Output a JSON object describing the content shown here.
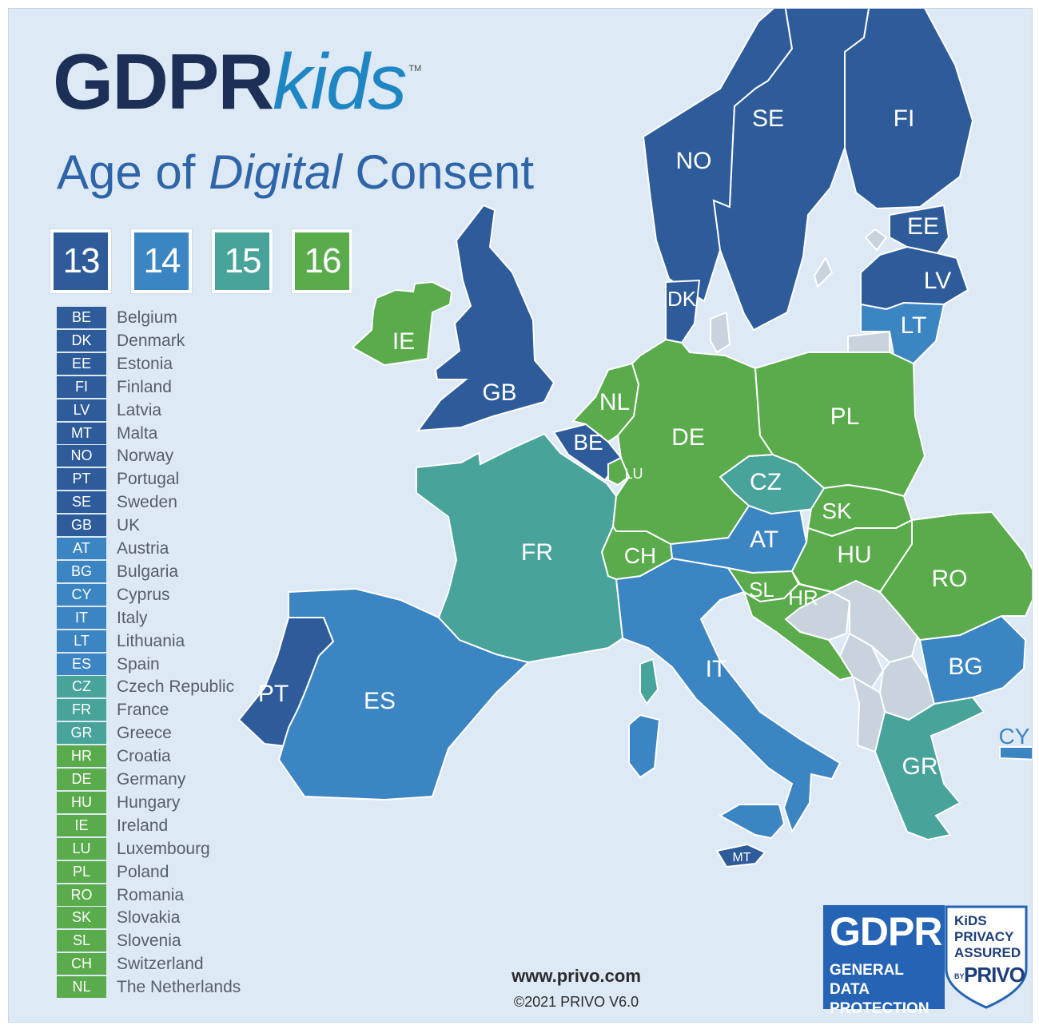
{
  "logo": {
    "gdpr": "GDPR",
    "kids": "kids",
    "tm": "TM"
  },
  "subtitle": {
    "before": "Age of ",
    "emphasis": "Digital",
    "after": " Consent"
  },
  "ages": [
    {
      "label": "13",
      "color": "#2e5c9b"
    },
    {
      "label": "14",
      "color": "#3b85c3"
    },
    {
      "label": "15",
      "color": "#48a39a"
    },
    {
      "label": "16",
      "color": "#5aab4b"
    }
  ],
  "legend": [
    {
      "code": "BE",
      "name": "Belgium",
      "age": 13
    },
    {
      "code": "DK",
      "name": "Denmark",
      "age": 13
    },
    {
      "code": "EE",
      "name": "Estonia",
      "age": 13
    },
    {
      "code": "FI",
      "name": "Finland",
      "age": 13
    },
    {
      "code": "LV",
      "name": "Latvia",
      "age": 13
    },
    {
      "code": "MT",
      "name": "Malta",
      "age": 13
    },
    {
      "code": "NO",
      "name": "Norway",
      "age": 13
    },
    {
      "code": "PT",
      "name": "Portugal",
      "age": 13
    },
    {
      "code": "SE",
      "name": "Sweden",
      "age": 13
    },
    {
      "code": "GB",
      "name": "UK",
      "age": 13
    },
    {
      "code": "AT",
      "name": "Austria",
      "age": 14
    },
    {
      "code": "BG",
      "name": "Bulgaria",
      "age": 14
    },
    {
      "code": "CY",
      "name": "Cyprus",
      "age": 14
    },
    {
      "code": "IT",
      "name": "Italy",
      "age": 14
    },
    {
      "code": "LT",
      "name": "Lithuania",
      "age": 14
    },
    {
      "code": "ES",
      "name": "Spain",
      "age": 14
    },
    {
      "code": "CZ",
      "name": "Czech Republic",
      "age": 15
    },
    {
      "code": "FR",
      "name": "France",
      "age": 15
    },
    {
      "code": "GR",
      "name": "Greece",
      "age": 15
    },
    {
      "code": "HR",
      "name": "Croatia",
      "age": 16
    },
    {
      "code": "DE",
      "name": "Germany",
      "age": 16
    },
    {
      "code": "HU",
      "name": "Hungary",
      "age": 16
    },
    {
      "code": "IE",
      "name": "Ireland",
      "age": 16
    },
    {
      "code": "LU",
      "name": "Luxembourg",
      "age": 16
    },
    {
      "code": "PL",
      "name": "Poland",
      "age": 16
    },
    {
      "code": "RO",
      "name": "Romania",
      "age": 16
    },
    {
      "code": "SK",
      "name": "Slovakia",
      "age": 16
    },
    {
      "code": "SL",
      "name": "Slovenia",
      "age": 16
    },
    {
      "code": "CH",
      "name": "Switzerland",
      "age": 16
    },
    {
      "code": "NL",
      "name": "The Netherlands",
      "age": 16
    }
  ],
  "map_labels": {
    "NO": "NO",
    "SE": "SE",
    "FI": "FI",
    "EE": "EE",
    "LV": "LV",
    "LT": "LT",
    "DK": "DK",
    "IE": "IE",
    "GB": "GB",
    "NL": "NL",
    "BE": "BE",
    "LU": "LU",
    "DE": "DE",
    "PL": "PL",
    "CZ": "CZ",
    "SK": "SK",
    "AT": "AT",
    "HU": "HU",
    "RO": "RO",
    "FR": "FR",
    "CH": "CH",
    "SL": "SL",
    "HR": "HR",
    "IT": "IT",
    "BG": "BG",
    "PT": "PT",
    "ES": "ES",
    "GR": "GR",
    "CY": "CY",
    "MT": "MT"
  },
  "colors": {
    "age13": "#2e5c9b",
    "age14": "#3b85c3",
    "age15": "#48a39a",
    "age16": "#5aab4b",
    "non_member": "#c9d3de",
    "background": "#dde9f5"
  },
  "footer": {
    "url": "www.privo.com",
    "copyright": "©2021 PRIVO V6.0"
  },
  "badge": {
    "gdpr": "GDPR",
    "line1": "GENERAL DATA",
    "line2": "PROTECTION",
    "kids": "KiDS",
    "privacy": "PRIVACY",
    "assured": "ASSURED",
    "by": "BY",
    "privo": "PRIVO"
  }
}
